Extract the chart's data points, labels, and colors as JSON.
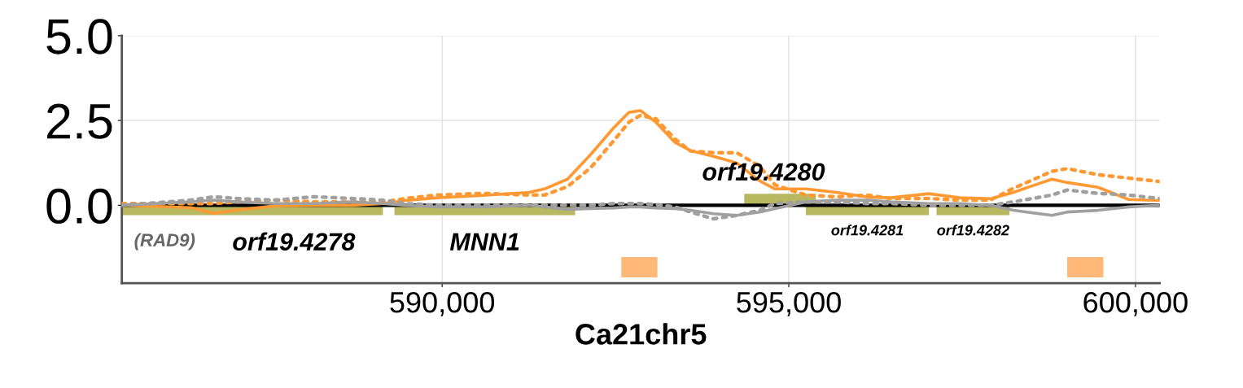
{
  "chart_data": {
    "type": "line",
    "xlabel": "Ca21chr5",
    "xlim": [
      585380,
      600350
    ],
    "ylim": [
      -2.3,
      5.0
    ],
    "xticks": [
      {
        "value": 590000,
        "label": "590,000"
      },
      {
        "value": 595000,
        "label": "595,000"
      },
      {
        "value": 600000,
        "label": "600,000"
      }
    ],
    "yticks": [
      {
        "value": 0,
        "label": "0.0"
      },
      {
        "value": 2.5,
        "label": "2.5"
      },
      {
        "value": 5.0,
        "label": "5.0"
      }
    ],
    "grid": true,
    "x": [
      585380,
      586374,
      586707,
      587039,
      587594,
      588148,
      588702,
      589146,
      589479,
      589922,
      590588,
      591253,
      591475,
      591808,
      592140,
      592473,
      592695,
      592861,
      593083,
      593360,
      593582,
      593915,
      594247,
      594580,
      594802,
      595246,
      595689,
      596133,
      596466,
      597020,
      597464,
      597907,
      598240,
      598794,
      599016,
      599460,
      599903,
      600347
    ],
    "series": [
      {
        "color": "#ff9933",
        "line_style": "solid",
        "values": [
          0,
          -0.07,
          -0.24,
          -0.14,
          -0.02,
          0,
          0,
          0.05,
          0.14,
          0.22,
          0.29,
          0.38,
          0.48,
          0.77,
          1.49,
          2.28,
          2.74,
          2.79,
          2.45,
          1.85,
          1.61,
          1.44,
          1.25,
          0.72,
          0.48,
          0.48,
          0.38,
          0.24,
          0.22,
          0.34,
          0.22,
          0.19,
          0.38,
          0.77,
          0.67,
          0.53,
          0.17,
          0.14
        ]
      },
      {
        "color": "#ff9933",
        "line_style": "dotted",
        "values": [
          0.05,
          0.05,
          0.05,
          0.1,
          0.15,
          0.1,
          0.1,
          0.1,
          0.2,
          0.3,
          0.35,
          0.3,
          0.3,
          0.55,
          1.1,
          1.9,
          2.45,
          2.65,
          2.55,
          1.95,
          1.6,
          1.55,
          1.55,
          1.15,
          0.6,
          0.3,
          0.25,
          0.3,
          0.2,
          0.2,
          0.15,
          0.15,
          0.5,
          1.0,
          1.08,
          0.9,
          0.8,
          0.7
        ]
      },
      {
        "color": "#a0a0a0",
        "line_style": "solid",
        "values": [
          0,
          0.1,
          0.15,
          0.1,
          0.05,
          0.05,
          0.1,
          0.05,
          0,
          -0.05,
          -0.05,
          0,
          -0.05,
          -0.12,
          -0.1,
          -0.08,
          -0.05,
          -0.05,
          -0.08,
          -0.1,
          -0.15,
          -0.25,
          -0.3,
          -0.2,
          -0.1,
          0.1,
          0.15,
          0.15,
          0.1,
          0.05,
          0.05,
          0.0,
          -0.15,
          -0.3,
          -0.2,
          -0.15,
          -0.05,
          0.0
        ]
      },
      {
        "color": "#a0a0a0",
        "line_style": "dotted",
        "values": [
          0,
          0.15,
          0.25,
          0.2,
          0.15,
          0.25,
          0.2,
          0.15,
          0.05,
          0.0,
          0.0,
          0.0,
          0.0,
          0.0,
          0.0,
          0.05,
          0.05,
          0.05,
          0.02,
          -0.05,
          -0.2,
          -0.4,
          -0.3,
          -0.15,
          0.05,
          0.1,
          0.1,
          0.05,
          0.05,
          0.0,
          0.0,
          0.0,
          0.1,
          0.3,
          0.45,
          0.35,
          0.3,
          0.2
        ]
      },
      {
        "color": "#b8b860",
        "line_style": "solid",
        "x": [
          585380,
          586617,
          null,
          586573,
          589146,
          null,
          589312,
          591919,
          null,
          594358,
          595390,
          null,
          595245,
          597020,
          null,
          597131,
          598184
        ],
        "values": [
          -0.14,
          -0.14,
          null,
          -0.14,
          -0.14,
          null,
          -0.14,
          -0.14,
          null,
          0.19,
          0.19,
          null,
          -0.14,
          -0.14,
          null,
          -0.14,
          -0.14
        ]
      },
      {
        "color": "#ffb877",
        "line_style": "solid",
        "x": [
          592584,
          593105,
          null,
          599016,
          599537
        ],
        "values": [
          -1.83,
          -1.83,
          null,
          -1.83,
          -1.83
        ]
      }
    ],
    "ref_lines": [
      {
        "axis": "y",
        "value": 0,
        "color": "#000000",
        "line_style": "solid"
      }
    ],
    "annotations": [
      {
        "text": "(RAD9)",
        "x": 585998,
        "y": -0.14
      },
      {
        "text": "orf19.4278",
        "x": 587860,
        "y": -0.14
      },
      {
        "text": "MNN1",
        "x": 590616,
        "y": -0.14
      },
      {
        "text": "orf19.4280",
        "x": 594636,
        "y": 0.19
      },
      {
        "text": "orf19.4281",
        "x": 596133,
        "y": -0.14
      },
      {
        "text": "orf19.4282",
        "x": 597658,
        "y": -0.14
      }
    ]
  }
}
